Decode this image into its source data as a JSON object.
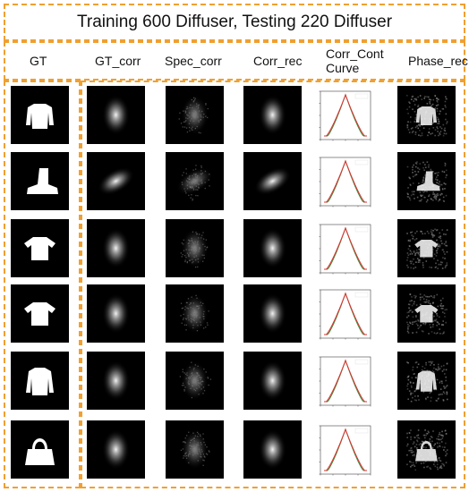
{
  "title": "Training 600 Diffuser, Testing 220 Diffuser",
  "columns": [
    "GT",
    "GT_corr",
    "Spec_corr",
    "Corr_rec",
    "Corr_Cont Curve",
    "Phase_rec"
  ],
  "column_lines": [
    [
      "GT"
    ],
    [
      "GT_corr"
    ],
    [
      "Spec_corr"
    ],
    [
      "Corr_rec"
    ],
    [
      "Corr_Cont",
      "Curve"
    ],
    [
      "Phase_rec"
    ]
  ],
  "rows": [
    {
      "object": "shirt-long-sleeve"
    },
    {
      "object": "boot"
    },
    {
      "object": "t-shirt"
    },
    {
      "object": "t-shirt"
    },
    {
      "object": "pullover"
    },
    {
      "object": "bag"
    }
  ],
  "colors": {
    "border": "#f0a030",
    "curve_red": "#e03030",
    "curve_green": "#3a8a3a"
  }
}
